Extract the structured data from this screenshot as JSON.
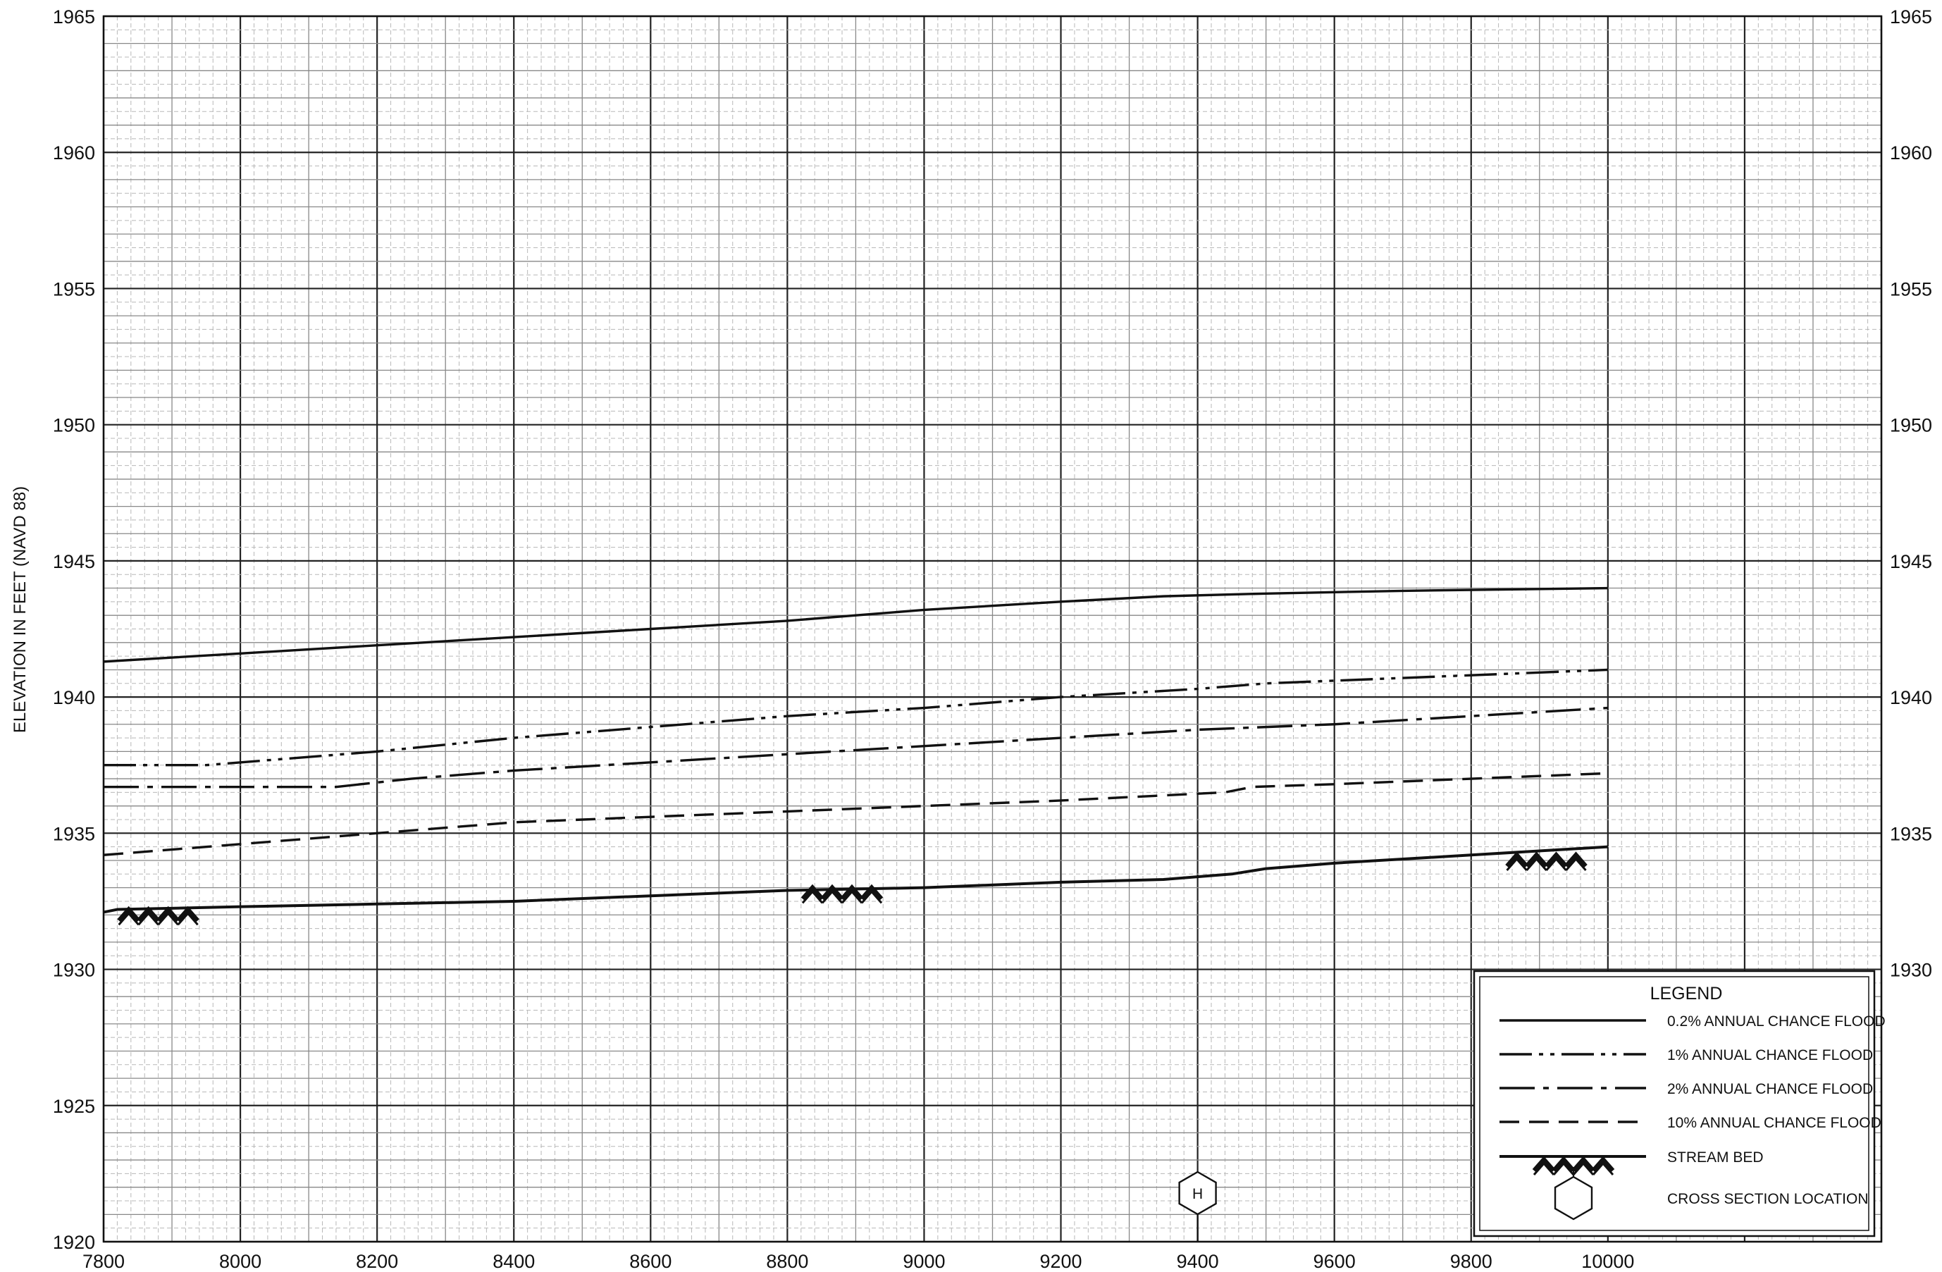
{
  "chart_data": {
    "type": "line",
    "title": "",
    "xlabel": "",
    "ylabel": "ELEVATION IN FEET (NAVD 88)",
    "xlim": [
      7800,
      10400
    ],
    "ylim": [
      1920,
      1965
    ],
    "x_ticks": [
      7800,
      8000,
      8200,
      8400,
      8600,
      8800,
      9000,
      9200,
      9400,
      9600,
      9800,
      10000
    ],
    "x_tick_labels": [
      "7800",
      "8000",
      "8200",
      "8400",
      "8600",
      "8800",
      "9000",
      "9200",
      "9400",
      "9600",
      "9800",
      "10000"
    ],
    "y_ticks": [
      1920,
      1925,
      1930,
      1935,
      1940,
      1945,
      1950,
      1955,
      1960,
      1965
    ],
    "y_tick_labels": [
      "1920",
      "1925",
      "1930",
      "1935",
      "1940",
      "1945",
      "1950",
      "1955",
      "1960",
      "1965"
    ],
    "right_y_ticks": [
      1930,
      1935,
      1940,
      1945,
      1950,
      1955,
      1960,
      1965
    ],
    "right_y_tick_labels": [
      "1930",
      "1935",
      "1940",
      "1945",
      "1950",
      "1955",
      "1960",
      "1965"
    ],
    "grid": true,
    "legend_position": "bottom-right",
    "series": [
      {
        "name": "0.2% ANNUAL CHANCE FLOOD",
        "style": "solid",
        "x": [
          7800,
          8000,
          8200,
          8400,
          8600,
          8800,
          9000,
          9200,
          9350,
          9500,
          9700,
          10000
        ],
        "y": [
          1941.3,
          1941.6,
          1941.9,
          1942.2,
          1942.5,
          1942.8,
          1943.2,
          1943.5,
          1943.7,
          1943.8,
          1943.9,
          1944.0
        ]
      },
      {
        "name": "1% ANNUAL CHANCE FLOOD",
        "style": "dash-dot-dot",
        "x": [
          7800,
          7950,
          8050,
          8200,
          8400,
          8600,
          8800,
          9000,
          9200,
          9400,
          9450,
          9500,
          9700,
          9900,
          10000
        ],
        "y": [
          1937.5,
          1937.5,
          1937.7,
          1938.0,
          1938.5,
          1938.9,
          1939.3,
          1939.6,
          1940.0,
          1940.3,
          1940.4,
          1940.5,
          1940.7,
          1940.9,
          1941.0
        ]
      },
      {
        "name": "2% ANNUAL CHANCE FLOOD",
        "style": "dash-dot",
        "x": [
          7800,
          8000,
          8140,
          8250,
          8400,
          8600,
          8800,
          9000,
          9200,
          9400,
          9600,
          9800,
          10000
        ],
        "y": [
          1936.7,
          1936.7,
          1936.7,
          1937.0,
          1937.3,
          1937.6,
          1937.9,
          1938.2,
          1938.5,
          1938.8,
          1939.0,
          1939.3,
          1939.6
        ]
      },
      {
        "name": "10% ANNUAL CHANCE FLOOD",
        "style": "dashed",
        "x": [
          7800,
          8000,
          8200,
          8400,
          8600,
          8800,
          9000,
          9200,
          9440,
          9480,
          9600,
          9800,
          10000
        ],
        "y": [
          1934.2,
          1934.6,
          1935.0,
          1935.4,
          1935.6,
          1935.8,
          1936.0,
          1936.2,
          1936.5,
          1936.7,
          1936.8,
          1937.0,
          1937.2
        ]
      },
      {
        "name": "STREAM BED",
        "style": "solid",
        "x": [
          7800,
          7820,
          8000,
          8200,
          8400,
          8600,
          8800,
          9000,
          9200,
          9350,
          9450,
          9500,
          9600,
          9800,
          10000
        ],
        "y": [
          1932.1,
          1932.2,
          1932.3,
          1932.4,
          1932.5,
          1932.7,
          1932.9,
          1933.0,
          1933.2,
          1933.3,
          1933.5,
          1933.7,
          1933.9,
          1934.2,
          1934.5
        ]
      }
    ],
    "stream_bed_markers": [
      {
        "x": 7880,
        "y": 1932.0
      },
      {
        "x": 8880,
        "y": 1932.8
      },
      {
        "x": 9910,
        "y": 1934.0
      }
    ],
    "cross_sections": [
      {
        "label": "H",
        "x": 9400
      }
    ],
    "legend": {
      "title": "LEGEND",
      "entries": [
        {
          "label": "0.2% ANNUAL CHANCE FLOOD",
          "style": "solid"
        },
        {
          "label": "1% ANNUAL CHANCE FLOOD",
          "style": "dash-dot-dot"
        },
        {
          "label": "2% ANNUAL CHANCE FLOOD",
          "style": "dash-dot"
        },
        {
          "label": "10% ANNUAL CHANCE FLOOD",
          "style": "dashed"
        },
        {
          "label": "STREAM BED",
          "style": "stream-bed"
        },
        {
          "label": "CROSS SECTION LOCATION",
          "style": "hexagon"
        }
      ]
    }
  }
}
